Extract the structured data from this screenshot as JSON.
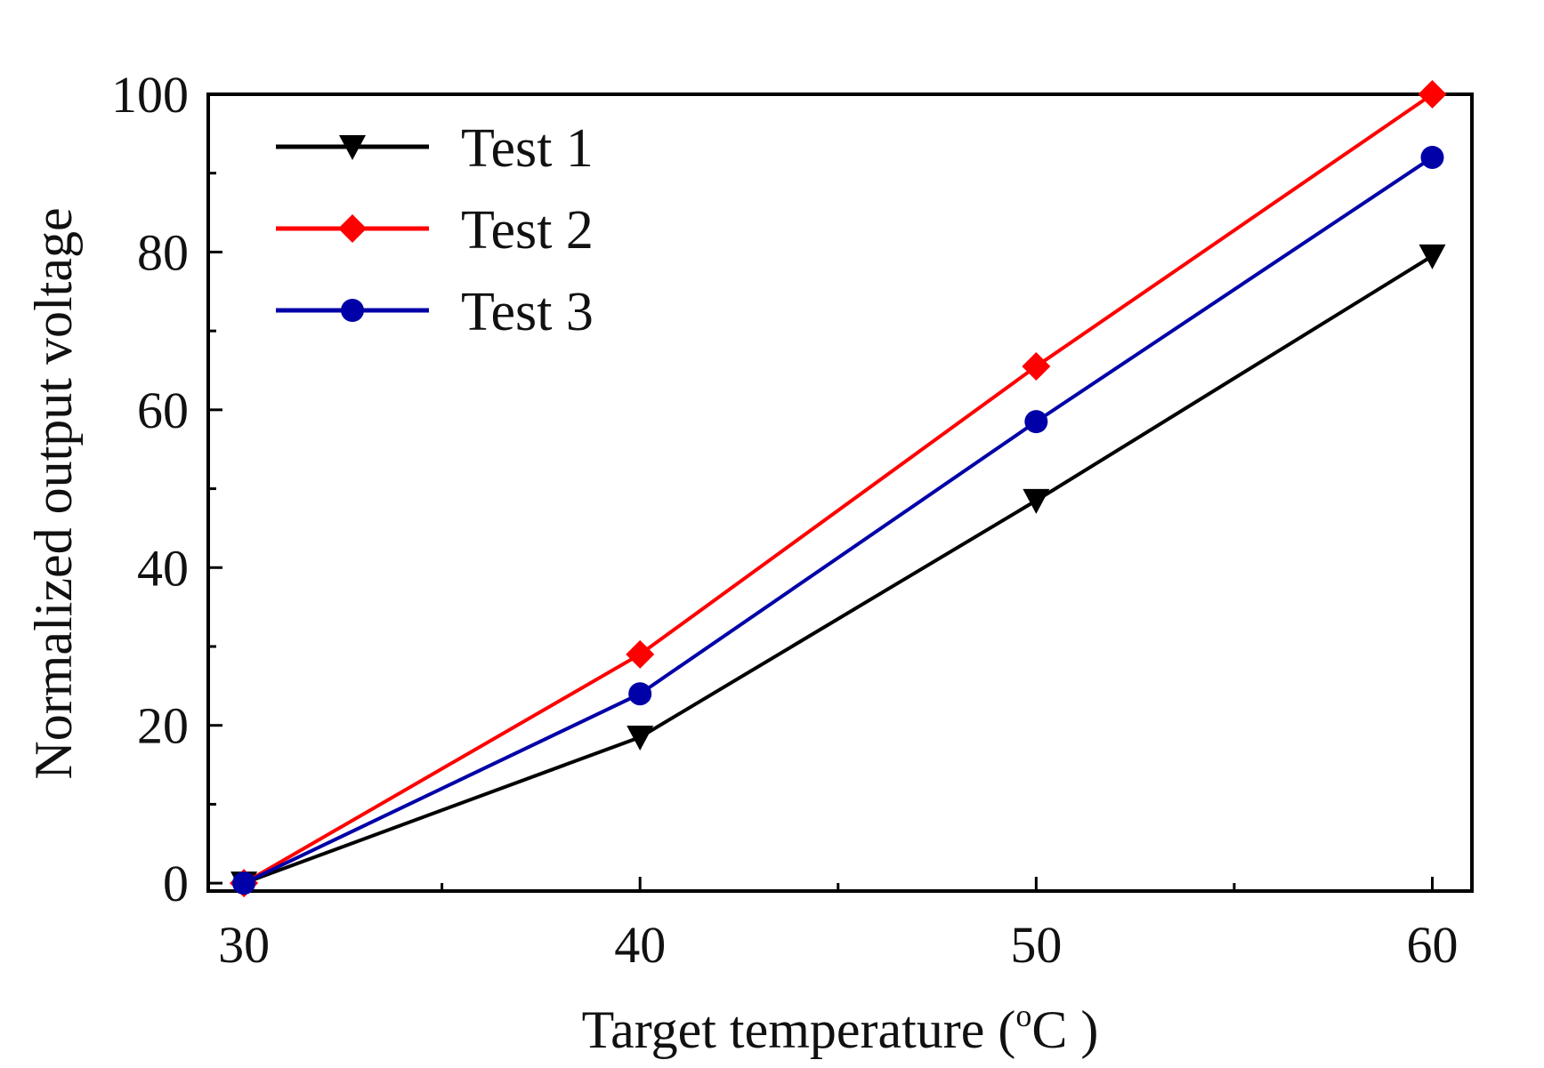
{
  "chart_data": {
    "type": "line",
    "title": "",
    "xlabel": "Target temperature (",
    "xlabel_sup": "o",
    "xlabel_tail": "C )",
    "ylabel": "Normalized output voltage",
    "x": [
      30,
      40,
      50,
      60
    ],
    "xlim": [
      29.1,
      61
    ],
    "ylim": [
      -1,
      100
    ],
    "xticks": [
      30,
      40,
      50,
      60
    ],
    "yticks": [
      0,
      20,
      40,
      60,
      80,
      100
    ],
    "grid": false,
    "legend_position": "top-left",
    "series": [
      {
        "name": "Test 1",
        "marker": "triangle-down",
        "color": "#000000",
        "values": [
          0,
          18.5,
          48.5,
          79.5
        ]
      },
      {
        "name": "Test 2",
        "marker": "diamond",
        "color": "#ff0000",
        "values": [
          0,
          29,
          65.5,
          100
        ]
      },
      {
        "name": "Test 3",
        "marker": "circle",
        "color": "#0000a8",
        "values": [
          0,
          24,
          58.5,
          92
        ]
      }
    ]
  }
}
